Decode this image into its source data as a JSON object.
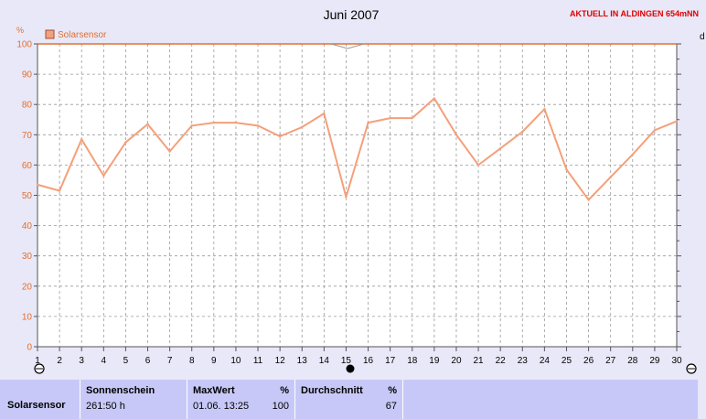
{
  "header": {
    "title": "Juni 2007",
    "status_note": "AKTUELL IN ALDINGEN 654mNN",
    "right_axis_unit": "d"
  },
  "chart_data": {
    "type": "line",
    "title": "Juni 2007",
    "ylabel": "%",
    "xlabel": "",
    "ylim": [
      0,
      100
    ],
    "yticks": [
      0,
      10,
      20,
      30,
      40,
      50,
      60,
      70,
      80,
      90,
      100
    ],
    "categories": [
      "1",
      "2",
      "3",
      "4",
      "5",
      "6",
      "7",
      "8",
      "9",
      "10",
      "11",
      "12",
      "13",
      "14",
      "15",
      "16",
      "17",
      "18",
      "19",
      "20",
      "21",
      "22",
      "23",
      "24",
      "25",
      "26",
      "27",
      "28",
      "29",
      "30"
    ],
    "grid": true,
    "legend_position": "top-left",
    "series": [
      {
        "name": "Solarsensor",
        "color": "#f4a07a",
        "values": [
          53.5,
          51.5,
          68.5,
          56.5,
          67.5,
          73.5,
          64.5,
          73,
          74,
          74,
          73,
          69.5,
          72.5,
          77,
          49.5,
          74,
          75.5,
          75.5,
          82,
          70,
          60,
          65.5,
          71,
          78.5,
          58.5,
          48.5,
          56,
          63.5,
          71.5,
          74.5
        ]
      }
    ]
  },
  "footer": {
    "row_label": "Solarsensor",
    "sunshine": {
      "header": "Sonnenschein",
      "value": "261:50 h"
    },
    "max": {
      "header": "MaxWert",
      "unit": "%",
      "time": "01.06.  13:25",
      "value": "100"
    },
    "avg": {
      "header": "Durchschnitt",
      "unit": "%",
      "value": "67"
    }
  }
}
